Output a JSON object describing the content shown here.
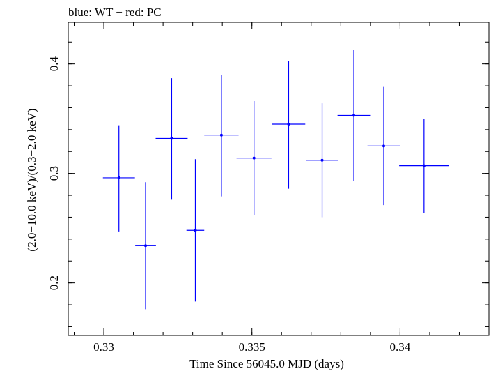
{
  "chart_data": {
    "type": "scatter",
    "title": "blue: WT − red: PC",
    "xlabel": "Time Since 56045.0 MJD (days)",
    "ylabel": "(2.0−10.0 keV)/(0.3−2.0 keV)",
    "xlim": [
      0.3288,
      0.343
    ],
    "ylim": [
      0.152,
      0.438
    ],
    "x_ticks": [
      {
        "value": 0.33,
        "label": "0.33"
      },
      {
        "value": 0.335,
        "label": "0.335"
      },
      {
        "value": 0.34,
        "label": "0.34"
      }
    ],
    "y_ticks": [
      {
        "value": 0.2,
        "label": "0.2"
      },
      {
        "value": 0.3,
        "label": "0.3"
      },
      {
        "value": 0.4,
        "label": "0.4"
      }
    ],
    "x_minor_step": 0.001,
    "y_minor_step": 0.02,
    "grid": false,
    "colors": {
      "wt": "#0000ff",
      "pc": "#ff0000"
    },
    "series": [
      {
        "color": "#0000ff",
        "points": [
          {
            "x": 0.33051,
            "xerr": 0.00054,
            "y": 0.296,
            "yerr_low": 0.049,
            "yerr_high": 0.048
          },
          {
            "x": 0.33141,
            "xerr": 0.00035,
            "y": 0.234,
            "yerr_low": 0.058,
            "yerr_high": 0.058
          },
          {
            "x": 0.33229,
            "xerr": 0.00054,
            "y": 0.332,
            "yerr_low": 0.056,
            "yerr_high": 0.055
          },
          {
            "x": 0.33309,
            "xerr": 0.0003,
            "y": 0.248,
            "yerr_low": 0.065,
            "yerr_high": 0.065
          },
          {
            "x": 0.33397,
            "xerr": 0.00058,
            "y": 0.335,
            "yerr_low": 0.056,
            "yerr_high": 0.055
          },
          {
            "x": 0.33507,
            "xerr": 0.00059,
            "y": 0.314,
            "yerr_low": 0.052,
            "yerr_high": 0.052
          },
          {
            "x": 0.33624,
            "xerr": 0.00056,
            "y": 0.345,
            "yerr_low": 0.059,
            "yerr_high": 0.058
          },
          {
            "x": 0.33737,
            "xerr": 0.00053,
            "y": 0.312,
            "yerr_low": 0.052,
            "yerr_high": 0.052
          },
          {
            "x": 0.33844,
            "xerr": 0.00055,
            "y": 0.353,
            "yerr_low": 0.06,
            "yerr_high": 0.06
          },
          {
            "x": 0.33945,
            "xerr": 0.00055,
            "y": 0.325,
            "yerr_low": 0.054,
            "yerr_high": 0.054
          },
          {
            "x": 0.34081,
            "xerr": 0.00084,
            "y": 0.307,
            "yerr_low": 0.043,
            "yerr_high": 0.043
          }
        ]
      }
    ]
  }
}
